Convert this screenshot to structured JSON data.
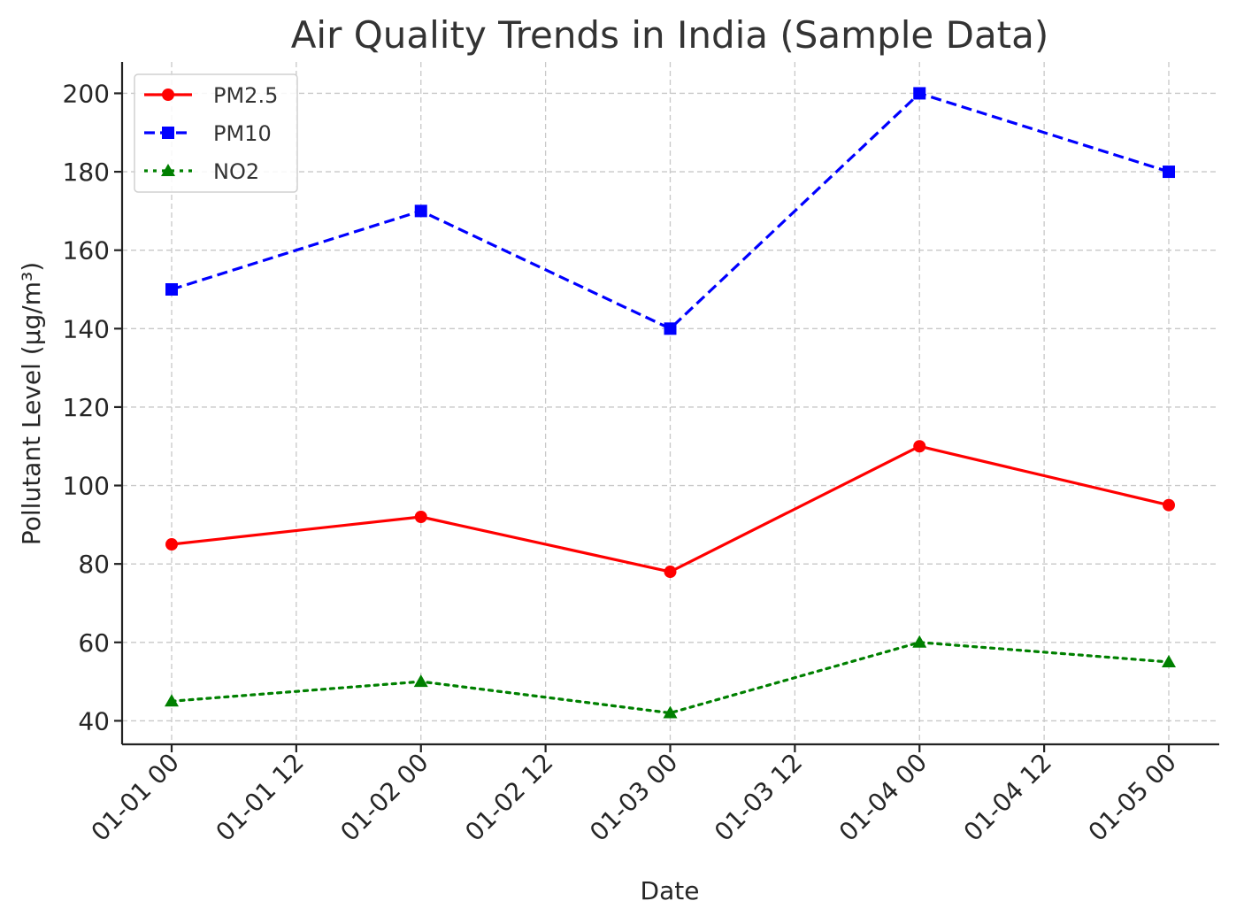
{
  "chart_data": {
    "type": "line",
    "title": "Air Quality Trends in India (Sample Data)",
    "xlabel": "Date",
    "ylabel": "Pollutant Level (µg/m³)",
    "x": [
      "01-01 00",
      "01-02 00",
      "01-03 00",
      "01-04 00",
      "01-05 00"
    ],
    "x_tick_labels": [
      "01-01 00",
      "01-01 12",
      "01-02 00",
      "01-02 12",
      "01-03 00",
      "01-03 12",
      "01-04 00",
      "01-04 12",
      "01-05 00"
    ],
    "y_ticks": [
      40,
      60,
      80,
      100,
      120,
      140,
      160,
      180,
      200
    ],
    "ylim": [
      34,
      208
    ],
    "grid": true,
    "legend_position": "top-left",
    "series": [
      {
        "name": "PM2.5",
        "values": [
          85,
          92,
          78,
          110,
          95
        ],
        "color": "#ff0000",
        "line_style": "solid",
        "marker": "circle"
      },
      {
        "name": "PM10",
        "values": [
          150,
          170,
          140,
          200,
          180
        ],
        "color": "#0000ff",
        "line_style": "dashed",
        "marker": "square"
      },
      {
        "name": "NO2",
        "values": [
          45,
          50,
          42,
          60,
          55
        ],
        "color": "#008000",
        "line_style": "dotted",
        "marker": "triangle"
      }
    ]
  }
}
